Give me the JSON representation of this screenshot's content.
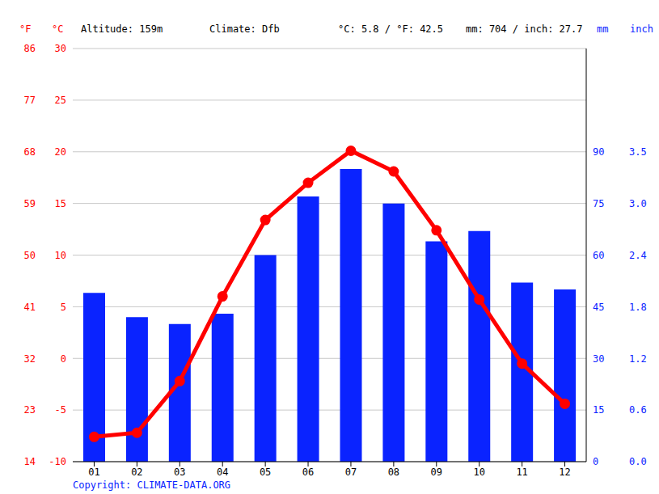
{
  "chart_data": {
    "type": "bar",
    "header": [
      "Altitude: 159m",
      "Climate: Dfb",
      "°C: 5.8 / °F: 42.5",
      "mm: 704 / inch: 27.7"
    ],
    "copyright": "Copyright: CLIMATE-DATA.ORG",
    "categories": [
      "01",
      "02",
      "03",
      "04",
      "05",
      "06",
      "07",
      "08",
      "09",
      "10",
      "11",
      "12"
    ],
    "series": [
      {
        "type": "bar",
        "color": "#0a23ff",
        "axis": "y2",
        "values": [
          49,
          42,
          40,
          43,
          60,
          77,
          85,
          75,
          64,
          67,
          52,
          50
        ]
      },
      {
        "type": "line",
        "color": "#ff0000",
        "marker": "circle",
        "values": [
          -7.6,
          -7.2,
          -2.2,
          6.0,
          13.4,
          17.0,
          20.1,
          18.1,
          12.4,
          5.7,
          -0.5,
          -4.4
        ]
      }
    ],
    "y_label": "°C",
    "ylim": [
      -10,
      30
    ],
    "yticks": [
      -10,
      -5,
      0,
      5,
      10,
      15,
      20,
      25,
      30
    ],
    "y_label_f": "°F",
    "yticks_f": [
      {
        "value": -10,
        "label": "14"
      },
      {
        "value": -5,
        "label": "23"
      },
      {
        "value": 0,
        "label": "32"
      },
      {
        "value": 5,
        "label": "41"
      },
      {
        "value": 10,
        "label": "50"
      },
      {
        "value": 15,
        "label": "59"
      },
      {
        "value": 20,
        "label": "68"
      },
      {
        "value": 25,
        "label": "77"
      },
      {
        "value": 30,
        "label": "86"
      }
    ],
    "y2_label": "mm",
    "y2lim": [
      0,
      120
    ],
    "y2ticks": [
      0,
      15,
      30,
      45,
      60,
      75,
      90
    ],
    "y2_label_inch": "inch",
    "y2ticks_inch": [
      {
        "value": 0,
        "label": "0.0"
      },
      {
        "value": 15,
        "label": "0.6"
      },
      {
        "value": 30,
        "label": "1.2"
      },
      {
        "value": 45,
        "label": "1.8"
      },
      {
        "value": 60,
        "label": "2.4"
      },
      {
        "value": 75,
        "label": "3.0"
      },
      {
        "value": 90,
        "label": "3.5"
      }
    ],
    "grid": true
  }
}
